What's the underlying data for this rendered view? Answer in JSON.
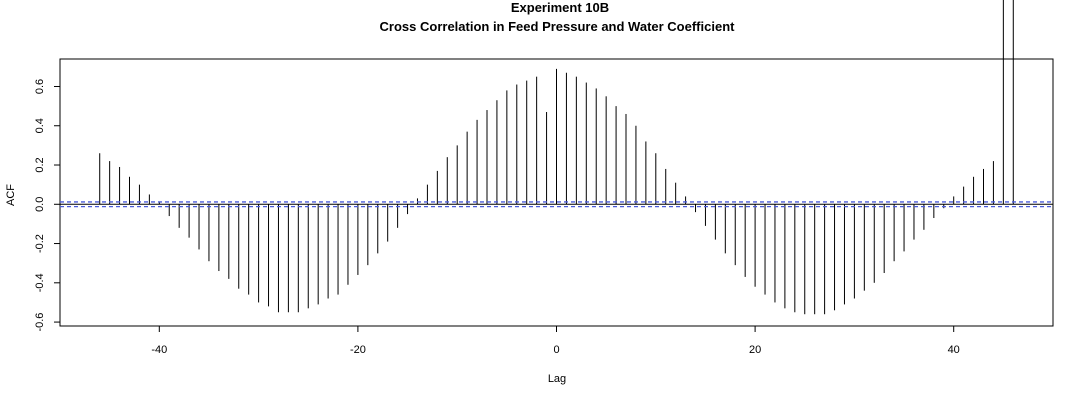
{
  "chart_data": {
    "type": "bar",
    "title": "Experiment  10B",
    "subtitle": "Cross Correlation in Feed Pressure and Water Coefficient",
    "xlabel": "Lag",
    "ylabel": "ACF",
    "xlim": [
      -50,
      50
    ],
    "ylim": [
      -0.62,
      0.74
    ],
    "x_ticks": [
      -40,
      -20,
      0,
      20,
      40
    ],
    "x_tick_labels": [
      "-40",
      "-20",
      "0",
      "20",
      "40"
    ],
    "y_ticks": [
      -0.6,
      -0.4,
      -0.2,
      0.0,
      0.2,
      0.4,
      0.6
    ],
    "y_tick_labels": [
      "-0.6",
      "-0.4",
      "-0.2",
      "0.0",
      "0.2",
      "0.4",
      "0.6"
    ],
    "confidence_bound": 0.012,
    "colors": {
      "bars": "#000000",
      "zero_line": "#000000",
      "confidence": "#4a5bd9",
      "frame": "#000000"
    },
    "lags": [
      -46,
      -45,
      -44,
      -43,
      -42,
      -41,
      -40,
      -39,
      -38,
      -37,
      -36,
      -35,
      -34,
      -33,
      -32,
      -31,
      -30,
      -29,
      -28,
      -27,
      -26,
      -25,
      -24,
      -23,
      -22,
      -21,
      -20,
      -19,
      -18,
      -17,
      -16,
      -15,
      -14,
      -13,
      -12,
      -11,
      -10,
      -9,
      -8,
      -7,
      -6,
      -5,
      -4,
      -3,
      -2,
      -1,
      0,
      1,
      2,
      3,
      4,
      5,
      6,
      7,
      8,
      9,
      10,
      11,
      12,
      13,
      14,
      15,
      16,
      17,
      18,
      19,
      20,
      21,
      22,
      23,
      24,
      25,
      26,
      27,
      28,
      29,
      30,
      31,
      32,
      33,
      34,
      35,
      36,
      37,
      38,
      39,
      40,
      41,
      42,
      43,
      44,
      45,
      46
    ],
    "values": [
      0.26,
      0.22,
      0.19,
      0.14,
      0.1,
      0.05,
      0.01,
      -0.06,
      -0.12,
      -0.17,
      -0.23,
      -0.29,
      -0.34,
      -0.38,
      -0.43,
      -0.46,
      -0.5,
      -0.52,
      -0.55,
      -0.55,
      -0.55,
      -0.53,
      -0.51,
      -0.48,
      -0.46,
      -0.41,
      -0.36,
      -0.31,
      -0.25,
      -0.19,
      -0.12,
      -0.05,
      0.03,
      0.1,
      0.17,
      0.24,
      0.3,
      0.37,
      0.43,
      0.48,
      0.53,
      0.58,
      0.61,
      0.63,
      0.65,
      0.47,
      0.69,
      0.67,
      0.65,
      0.62,
      0.59,
      0.55,
      0.5,
      0.46,
      0.4,
      0.32,
      0.26,
      0.18,
      0.11,
      0.04,
      -0.04,
      -0.11,
      -0.18,
      -0.25,
      -0.31,
      -0.37,
      -0.42,
      -0.46,
      -0.5,
      -0.53,
      -0.55,
      -0.56,
      -0.56,
      -0.56,
      -0.54,
      -0.51,
      -0.48,
      -0.44,
      -0.4,
      -0.35,
      -0.29,
      -0.24,
      -0.18,
      -0.13,
      -0.07,
      -0.02,
      0.04,
      0.09,
      0.14,
      0.18,
      0.22
    ]
  }
}
